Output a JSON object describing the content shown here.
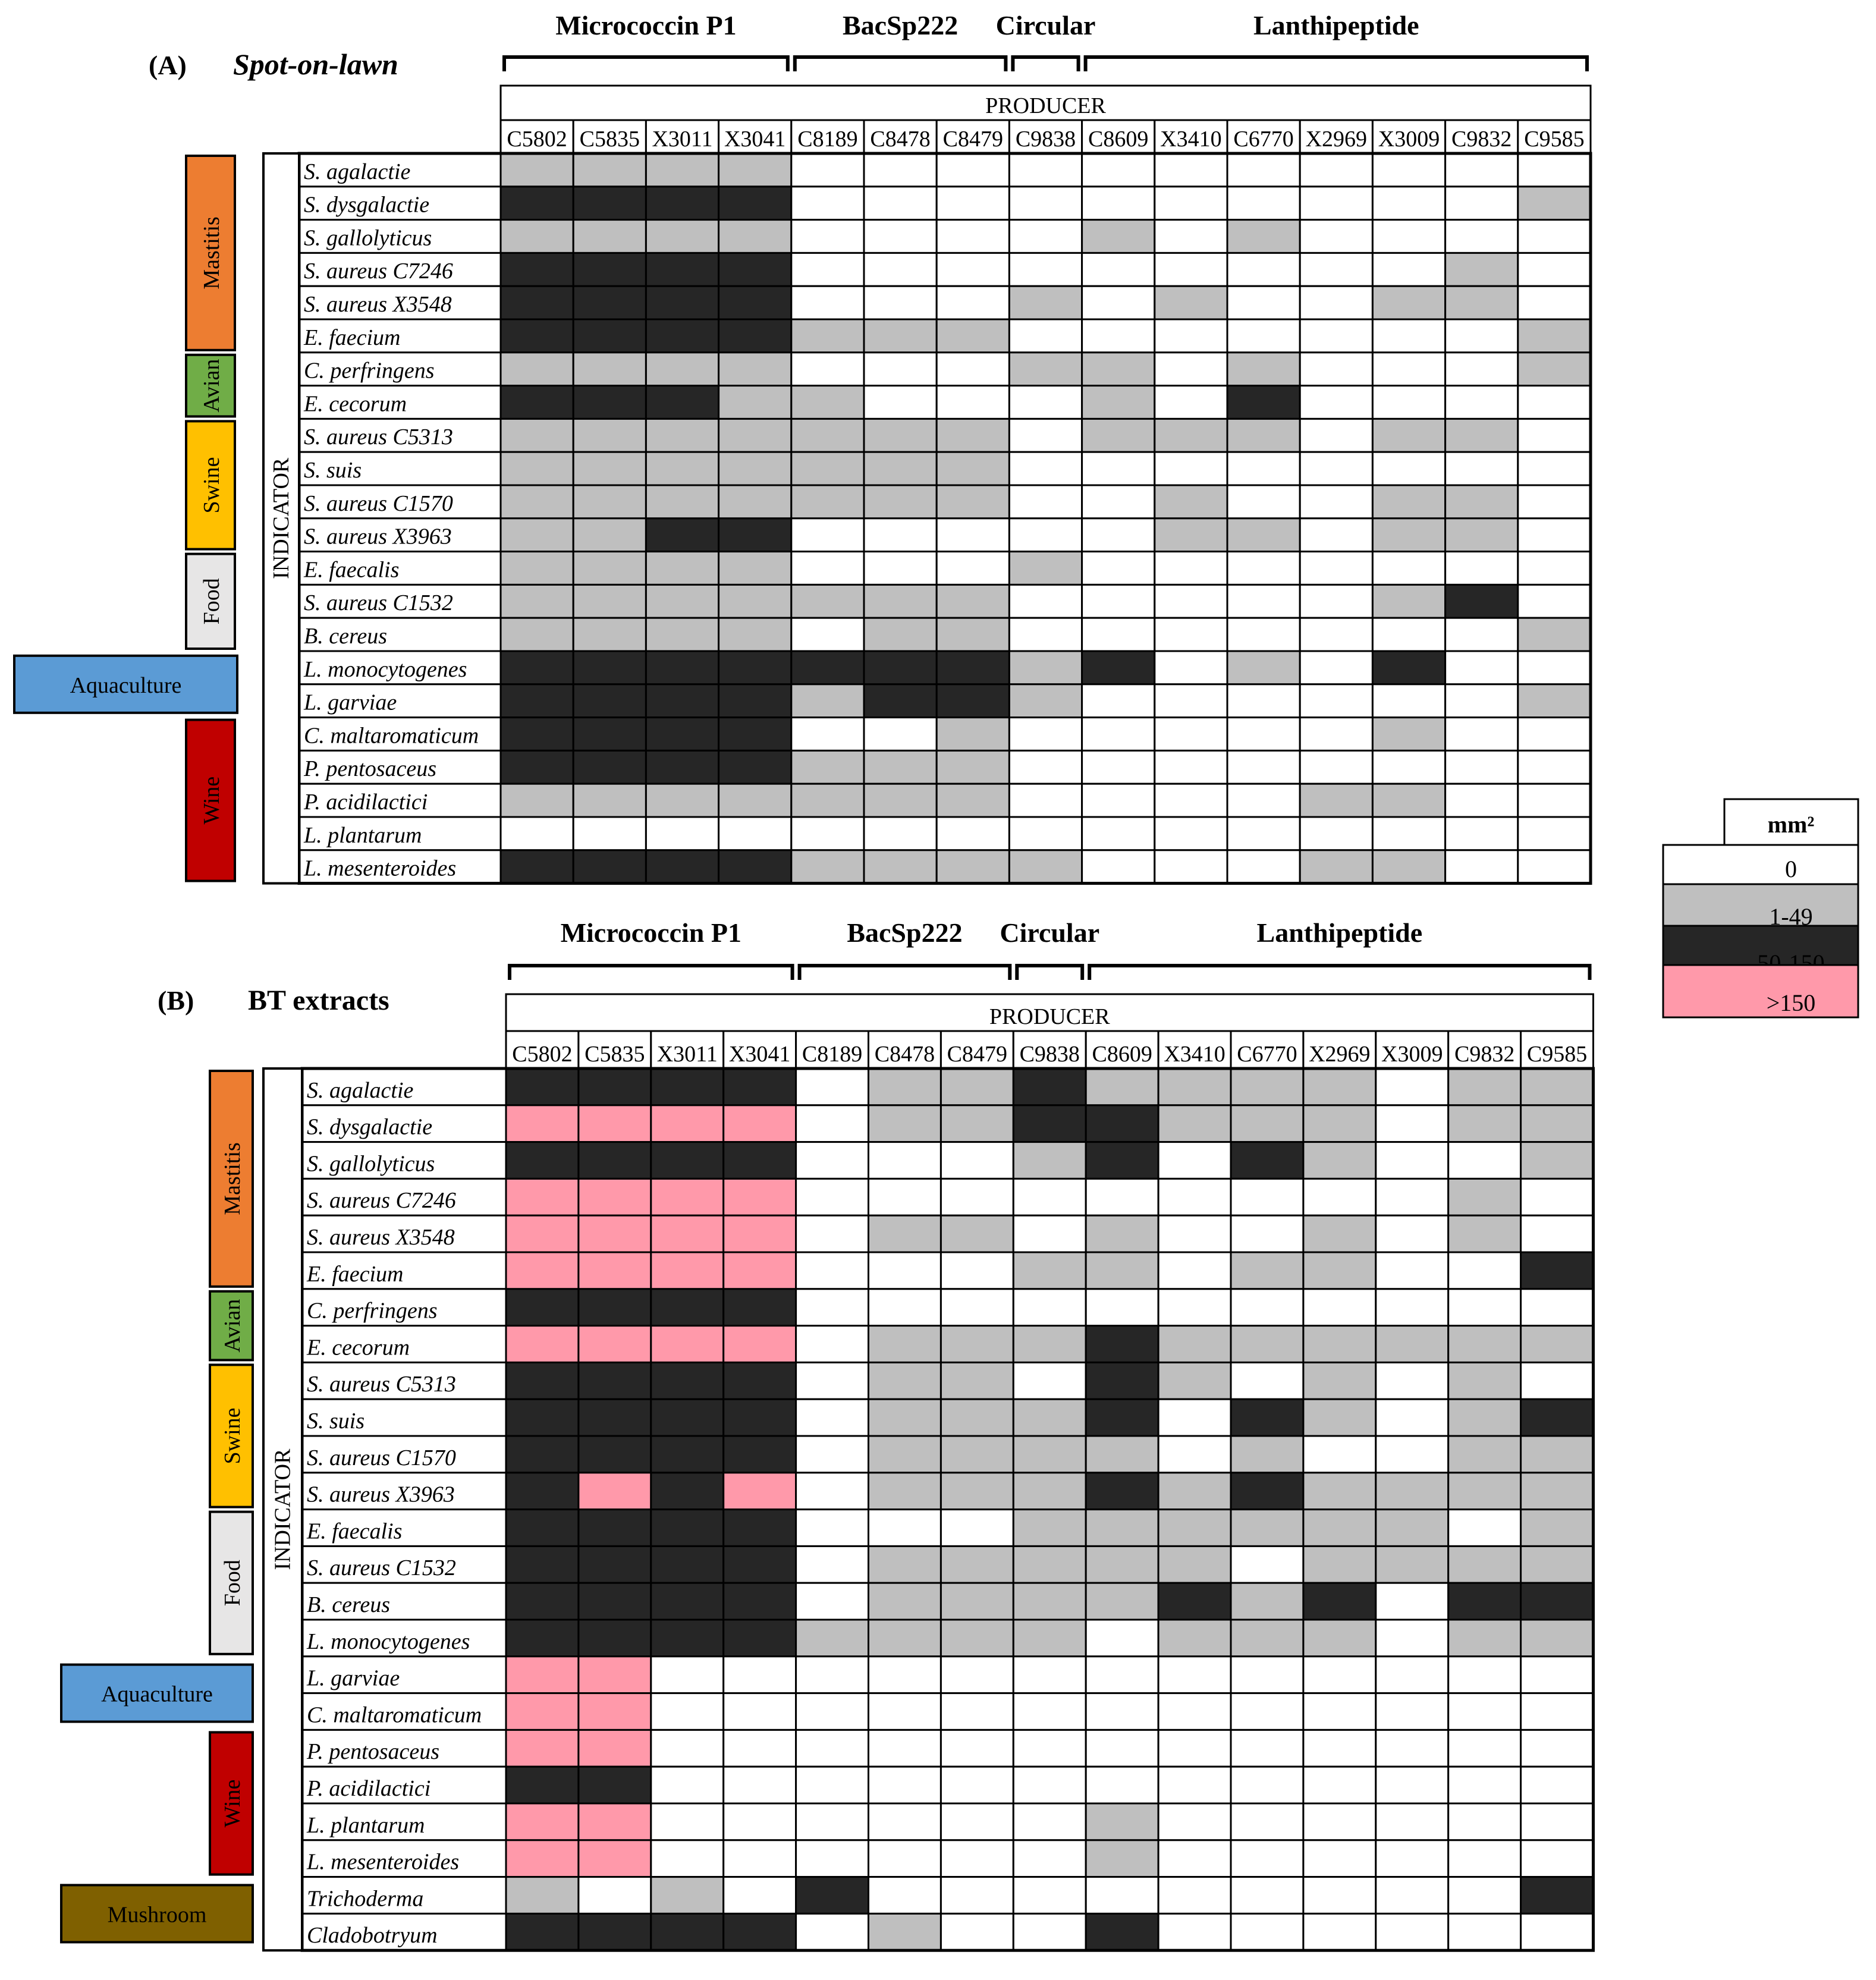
{
  "chart_data": [
    {
      "type": "heatmap",
      "panel_label": "(A)",
      "title": "Spot-on-lawn",
      "producer_label": "PRODUCER",
      "indicator_label": "INDICATOR",
      "groups": [
        {
          "name": "Micrococcin P1",
          "producers": [
            "C5802",
            "C5835",
            "X3011",
            "X3041"
          ]
        },
        {
          "name": "BacSp222",
          "producers": [
            "C8189",
            "C8478",
            "C8479"
          ]
        },
        {
          "name": "Circular",
          "producers": [
            "C9838"
          ]
        },
        {
          "name": "Lanthipeptide",
          "producers": [
            "C8609",
            "X3410",
            "C6770",
            "X2969",
            "X3009",
            "C9832",
            "C9585"
          ]
        }
      ],
      "producers": [
        "C5802",
        "C5835",
        "X3011",
        "X3041",
        "C8189",
        "C8478",
        "C8479",
        "C9838",
        "C8609",
        "X3410",
        "C6770",
        "X2969",
        "X3009",
        "C9832",
        "C9585"
      ],
      "indicators": [
        "S. agalactie",
        "S. dysgalactie",
        "S. gallolyticus",
        "S. aureus C7246",
        "S. aureus X3548",
        "E. faecium",
        "C. perfringens",
        "E. cecorum",
        "S. aureus C5313",
        "S. suis",
        "S. aureus C1570",
        "S. aureus X3963",
        "E. faecalis",
        "S. aureus C1532",
        "B. cereus",
        "L. monocytogenes",
        "L. garviae",
        "C. maltaromaticum",
        "P. pentosaceus",
        "P. acidilactici",
        "L. plantarum",
        "L. mesenteroides"
      ],
      "categories": [
        {
          "name": "Mastitis",
          "rows": [
            0,
            5
          ],
          "color": "#ED7D31"
        },
        {
          "name": "Avian",
          "rows": [
            6,
            7
          ],
          "color": "#70AD47"
        },
        {
          "name": "Swine",
          "rows": [
            8,
            11
          ],
          "color": "#FFC000"
        },
        {
          "name": "Food",
          "rows": [
            12,
            14
          ],
          "color": "#E7E6E6"
        },
        {
          "name": "Aquaculture",
          "rows": [
            15,
            16
          ],
          "color": "#5B9BD5"
        },
        {
          "name": "Wine",
          "rows": [
            17,
            21
          ],
          "color": "#C00000"
        }
      ],
      "values": [
        [
          1,
          1,
          1,
          1,
          0,
          0,
          0,
          0,
          0,
          0,
          0,
          0,
          0,
          0,
          0
        ],
        [
          2,
          2,
          2,
          2,
          0,
          0,
          0,
          0,
          0,
          0,
          0,
          0,
          0,
          0,
          1
        ],
        [
          1,
          1,
          1,
          1,
          0,
          0,
          0,
          0,
          1,
          0,
          1,
          0,
          0,
          0,
          0
        ],
        [
          2,
          2,
          2,
          2,
          0,
          0,
          0,
          0,
          0,
          0,
          0,
          0,
          0,
          1,
          0
        ],
        [
          2,
          2,
          2,
          2,
          0,
          0,
          0,
          1,
          0,
          1,
          0,
          0,
          1,
          1,
          0
        ],
        [
          2,
          2,
          2,
          2,
          1,
          1,
          1,
          0,
          0,
          0,
          0,
          0,
          0,
          0,
          1
        ],
        [
          1,
          1,
          1,
          1,
          0,
          0,
          0,
          1,
          1,
          0,
          1,
          0,
          0,
          0,
          1
        ],
        [
          2,
          2,
          2,
          1,
          1,
          0,
          0,
          0,
          1,
          0,
          2,
          0,
          0,
          0,
          0
        ],
        [
          1,
          1,
          1,
          1,
          1,
          1,
          1,
          0,
          1,
          1,
          1,
          0,
          1,
          1,
          0
        ],
        [
          1,
          1,
          1,
          1,
          1,
          1,
          1,
          0,
          0,
          0,
          0,
          0,
          0,
          0,
          0
        ],
        [
          1,
          1,
          1,
          1,
          1,
          1,
          1,
          0,
          0,
          1,
          0,
          0,
          1,
          1,
          0
        ],
        [
          1,
          1,
          2,
          2,
          0,
          0,
          0,
          0,
          0,
          1,
          1,
          0,
          1,
          1,
          0
        ],
        [
          1,
          1,
          1,
          1,
          0,
          0,
          0,
          1,
          0,
          0,
          0,
          0,
          0,
          0,
          0
        ],
        [
          1,
          1,
          1,
          1,
          1,
          1,
          1,
          0,
          0,
          0,
          0,
          0,
          1,
          2,
          0
        ],
        [
          1,
          1,
          1,
          1,
          0,
          1,
          1,
          0,
          0,
          0,
          0,
          0,
          0,
          0,
          1
        ],
        [
          2,
          2,
          2,
          2,
          2,
          2,
          2,
          1,
          2,
          0,
          1,
          0,
          2,
          0,
          0
        ],
        [
          2,
          2,
          2,
          2,
          1,
          2,
          2,
          1,
          0,
          0,
          0,
          0,
          0,
          0,
          1
        ],
        [
          2,
          2,
          2,
          2,
          0,
          0,
          1,
          0,
          0,
          0,
          0,
          0,
          1,
          0,
          0
        ],
        [
          2,
          2,
          2,
          2,
          1,
          1,
          1,
          0,
          0,
          0,
          0,
          0,
          0,
          0,
          0
        ],
        [
          1,
          1,
          1,
          1,
          1,
          1,
          1,
          0,
          0,
          0,
          0,
          1,
          1,
          0,
          0
        ],
        [
          0,
          0,
          0,
          0,
          0,
          0,
          0,
          0,
          0,
          0,
          0,
          0,
          0,
          0,
          0
        ],
        [
          2,
          2,
          2,
          2,
          1,
          1,
          1,
          1,
          0,
          0,
          0,
          1,
          1,
          0,
          0
        ]
      ]
    },
    {
      "type": "heatmap",
      "panel_label": "(B)",
      "title": "BT extracts",
      "producer_label": "PRODUCER",
      "indicator_label": "INDICATOR",
      "groups": [
        {
          "name": "Micrococcin P1",
          "producers": [
            "C5802",
            "C5835",
            "X3011",
            "X3041"
          ]
        },
        {
          "name": "BacSp222",
          "producers": [
            "C8189",
            "C8478",
            "C8479"
          ]
        },
        {
          "name": "Circular",
          "producers": [
            "C9838"
          ]
        },
        {
          "name": "Lanthipeptide",
          "producers": [
            "C8609",
            "X3410",
            "C6770",
            "X2969",
            "X3009",
            "C9832",
            "C9585"
          ]
        }
      ],
      "producers": [
        "C5802",
        "C5835",
        "X3011",
        "X3041",
        "C8189",
        "C8478",
        "C8479",
        "C9838",
        "C8609",
        "X3410",
        "C6770",
        "X2969",
        "X3009",
        "C9832",
        "C9585"
      ],
      "indicators": [
        "S. agalactie",
        "S. dysgalactie",
        "S. gallolyticus",
        "S. aureus C7246",
        "S. aureus X3548",
        "E. faecium",
        "C. perfringens",
        "E. cecorum",
        "S. aureus C5313",
        "S. suis",
        "S. aureus C1570",
        "S. aureus X3963",
        "E. faecalis",
        "S. aureus C1532",
        "B. cereus",
        "L. monocytogenes",
        "L. garviae",
        "C. maltaromaticum",
        "P. pentosaceus",
        "P. acidilactici",
        "L. plantarum",
        "L. mesenteroides",
        "Trichoderma",
        "Cladobotryum"
      ],
      "categories": [
        {
          "name": "Mastitis",
          "rows": [
            0,
            5
          ],
          "color": "#ED7D31"
        },
        {
          "name": "Avian",
          "rows": [
            6,
            7
          ],
          "color": "#70AD47"
        },
        {
          "name": "Swine",
          "rows": [
            8,
            11
          ],
          "color": "#FFC000"
        },
        {
          "name": "Food",
          "rows": [
            12,
            15
          ],
          "color": "#E7E6E6"
        },
        {
          "name": "Aquaculture",
          "rows": [
            16,
            17
          ],
          "color": "#5B9BD5"
        },
        {
          "name": "Wine",
          "rows": [
            18,
            21
          ],
          "color": "#C00000"
        },
        {
          "name": "Mushroom",
          "rows": [
            22,
            23
          ],
          "color": "#7F6000"
        }
      ],
      "values": [
        [
          2,
          2,
          2,
          2,
          0,
          1,
          1,
          2,
          1,
          1,
          1,
          1,
          0,
          1,
          1
        ],
        [
          3,
          3,
          3,
          3,
          0,
          1,
          1,
          2,
          2,
          1,
          1,
          1,
          0,
          1,
          1
        ],
        [
          2,
          2,
          2,
          2,
          0,
          0,
          0,
          1,
          2,
          0,
          2,
          1,
          0,
          0,
          1
        ],
        [
          3,
          3,
          3,
          3,
          0,
          0,
          0,
          0,
          0,
          0,
          0,
          0,
          0,
          1,
          0
        ],
        [
          3,
          3,
          3,
          3,
          0,
          1,
          1,
          0,
          1,
          0,
          0,
          1,
          0,
          1,
          0
        ],
        [
          3,
          3,
          3,
          3,
          0,
          0,
          0,
          1,
          1,
          0,
          1,
          1,
          0,
          0,
          2
        ],
        [
          2,
          2,
          2,
          2,
          0,
          0,
          0,
          0,
          0,
          0,
          0,
          0,
          0,
          0,
          0
        ],
        [
          3,
          3,
          3,
          3,
          0,
          1,
          1,
          1,
          2,
          1,
          1,
          1,
          1,
          1,
          1
        ],
        [
          2,
          2,
          2,
          2,
          0,
          1,
          1,
          0,
          2,
          1,
          0,
          1,
          0,
          1,
          0
        ],
        [
          2,
          2,
          2,
          2,
          0,
          1,
          1,
          1,
          2,
          0,
          2,
          1,
          0,
          1,
          2
        ],
        [
          2,
          2,
          2,
          2,
          0,
          1,
          1,
          1,
          1,
          0,
          1,
          0,
          0,
          1,
          1
        ],
        [
          2,
          3,
          2,
          3,
          0,
          1,
          1,
          1,
          2,
          1,
          2,
          1,
          1,
          1,
          1
        ],
        [
          2,
          2,
          2,
          2,
          0,
          0,
          0,
          1,
          1,
          1,
          1,
          1,
          1,
          0,
          1
        ],
        [
          2,
          2,
          2,
          2,
          0,
          1,
          1,
          1,
          1,
          1,
          0,
          1,
          1,
          1,
          1
        ],
        [
          2,
          2,
          2,
          2,
          0,
          1,
          1,
          1,
          1,
          2,
          1,
          2,
          0,
          2,
          2
        ],
        [
          2,
          2,
          2,
          2,
          1,
          1,
          1,
          1,
          0,
          1,
          1,
          1,
          0,
          1,
          1
        ],
        [
          3,
          3,
          0,
          0,
          0,
          0,
          0,
          0,
          0,
          0,
          0,
          0,
          0,
          0,
          0
        ],
        [
          3,
          3,
          0,
          0,
          0,
          0,
          0,
          0,
          0,
          0,
          0,
          0,
          0,
          0,
          0
        ],
        [
          3,
          3,
          0,
          0,
          0,
          0,
          0,
          0,
          0,
          0,
          0,
          0,
          0,
          0,
          0
        ],
        [
          2,
          2,
          0,
          0,
          0,
          0,
          0,
          0,
          0,
          0,
          0,
          0,
          0,
          0,
          0
        ],
        [
          3,
          3,
          0,
          0,
          0,
          0,
          0,
          0,
          1,
          0,
          0,
          0,
          0,
          0,
          0
        ],
        [
          3,
          3,
          0,
          0,
          0,
          0,
          0,
          0,
          1,
          0,
          0,
          0,
          0,
          0,
          0
        ],
        [
          1,
          0,
          1,
          0,
          2,
          0,
          0,
          0,
          0,
          0,
          0,
          0,
          0,
          0,
          2
        ],
        [
          2,
          2,
          2,
          2,
          0,
          1,
          0,
          0,
          2,
          0,
          0,
          0,
          0,
          0,
          0
        ]
      ]
    }
  ],
  "legend": {
    "title": "mm²",
    "items": [
      {
        "label": "0",
        "color": "#FFFFFF"
      },
      {
        "label": "1-49",
        "color": "#BFBFBF"
      },
      {
        "label": "50-150",
        "color": "#262626"
      },
      {
        "label": ">150",
        "color": "#FF99AA"
      }
    ]
  }
}
